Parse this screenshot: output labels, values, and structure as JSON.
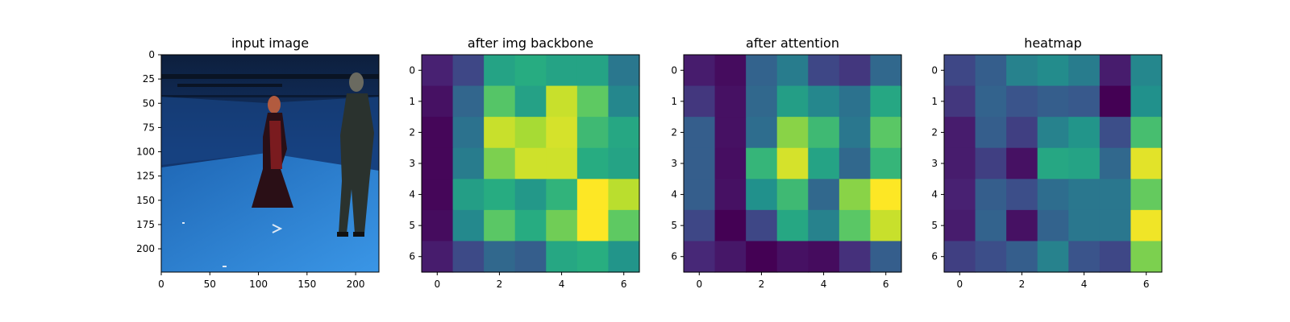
{
  "colormap": "viridis",
  "chart_data": [
    {
      "type": "image",
      "title": "input image",
      "xticks": [
        0,
        50,
        100,
        150,
        200
      ],
      "yticks": [
        0,
        25,
        50,
        75,
        100,
        125,
        150,
        175,
        200
      ],
      "xlim": [
        0,
        224
      ],
      "ylim": [
        224,
        0
      ],
      "description": "photo"
    },
    {
      "type": "heatmap",
      "title": "after img backbone",
      "xticks": [
        0,
        2,
        4,
        6
      ],
      "yticks": [
        0,
        1,
        2,
        3,
        4,
        5,
        6
      ],
      "values": [
        [
          0.12,
          0.22,
          0.58,
          0.62,
          0.58,
          0.58,
          0.4
        ],
        [
          0.06,
          0.33,
          0.73,
          0.57,
          0.92,
          0.75,
          0.46
        ],
        [
          0.02,
          0.38,
          0.92,
          0.87,
          0.94,
          0.68,
          0.6
        ],
        [
          0.02,
          0.42,
          0.8,
          0.93,
          0.93,
          0.62,
          0.58
        ],
        [
          0.02,
          0.56,
          0.62,
          0.53,
          0.65,
          1.0,
          0.9
        ],
        [
          0.04,
          0.47,
          0.74,
          0.62,
          0.78,
          1.0,
          0.75
        ],
        [
          0.1,
          0.23,
          0.34,
          0.3,
          0.6,
          0.63,
          0.52
        ]
      ]
    },
    {
      "type": "heatmap",
      "title": "after attention",
      "xticks": [
        0,
        2,
        4,
        6
      ],
      "yticks": [
        0,
        1,
        2,
        3,
        4,
        5,
        6
      ],
      "values": [
        [
          0.1,
          0.04,
          0.32,
          0.42,
          0.22,
          0.18,
          0.34
        ],
        [
          0.18,
          0.06,
          0.34,
          0.56,
          0.46,
          0.38,
          0.6
        ],
        [
          0.3,
          0.06,
          0.36,
          0.82,
          0.68,
          0.4,
          0.74
        ],
        [
          0.3,
          0.05,
          0.66,
          0.94,
          0.58,
          0.34,
          0.66
        ],
        [
          0.3,
          0.06,
          0.5,
          0.68,
          0.34,
          0.82,
          1.0
        ],
        [
          0.22,
          0.0,
          0.22,
          0.6,
          0.44,
          0.74,
          0.92
        ],
        [
          0.14,
          0.08,
          0.0,
          0.06,
          0.04,
          0.16,
          0.3
        ]
      ]
    },
    {
      "type": "heatmap",
      "title": "heatmap",
      "xticks": [
        0,
        2,
        4,
        6
      ],
      "yticks": [
        0,
        1,
        2,
        3,
        4,
        5,
        6
      ],
      "values": [
        [
          0.22,
          0.3,
          0.44,
          0.48,
          0.42,
          0.1,
          0.46
        ],
        [
          0.18,
          0.32,
          0.26,
          0.3,
          0.28,
          0.0,
          0.5
        ],
        [
          0.1,
          0.3,
          0.2,
          0.44,
          0.52,
          0.24,
          0.7
        ],
        [
          0.1,
          0.2,
          0.06,
          0.6,
          0.58,
          0.34,
          0.96
        ],
        [
          0.12,
          0.3,
          0.24,
          0.36,
          0.4,
          0.4,
          0.76
        ],
        [
          0.1,
          0.32,
          0.06,
          0.32,
          0.4,
          0.4,
          0.98
        ],
        [
          0.2,
          0.24,
          0.3,
          0.44,
          0.26,
          0.22,
          0.8
        ]
      ]
    }
  ]
}
